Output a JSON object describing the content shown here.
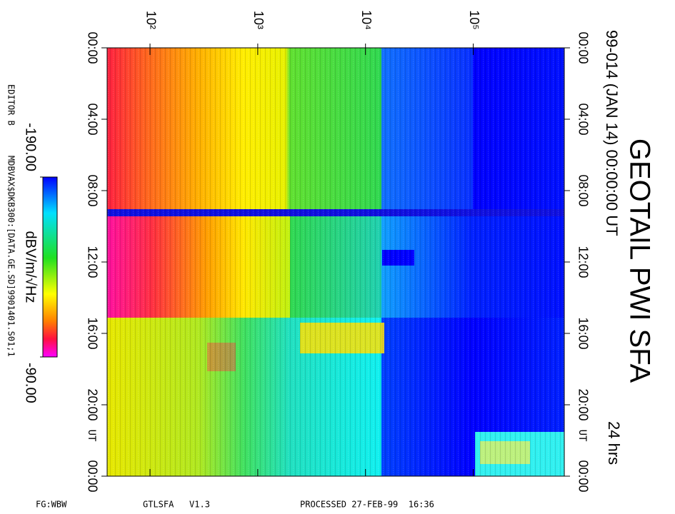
{
  "chart_data": {
    "type": "spectrogram",
    "title": "GEOTAIL PWI SFA",
    "subtitle": "99-014 (JAN 14) 00:00:00 UT",
    "duration_label": "24 hrs",
    "time_unit_label": "UT",
    "x_scale": "log",
    "xlim": [
      40,
      700000
    ],
    "xticks": [
      {
        "value": 100,
        "label": "10²"
      },
      {
        "value": 1000,
        "label": "10³"
      },
      {
        "value": 10000,
        "label": "10⁴"
      },
      {
        "value": 100000,
        "label": "10⁵"
      }
    ],
    "ylim": [
      0,
      24
    ],
    "yticks": [
      {
        "value": 0,
        "label": "00:00"
      },
      {
        "value": 4,
        "label": "04:00"
      },
      {
        "value": 8,
        "label": "08:00"
      },
      {
        "value": 12,
        "label": "12:00"
      },
      {
        "value": 16,
        "label": "16:00"
      },
      {
        "value": 20,
        "label": "20:00"
      },
      {
        "value": 24,
        "label": "00:00"
      }
    ],
    "colorbar": {
      "label": "dBV/m/√Hz",
      "lim": [
        -190,
        -90
      ],
      "ticks": [
        {
          "value": -190,
          "label": "-190.00"
        },
        {
          "value": -90,
          "label": "-90.00"
        }
      ]
    },
    "editor": "EDITOR B",
    "file": "MDBVAX$DKB300:[DATA.GE.SD]9901401.S01;1",
    "footer": [
      "FG:WBW",
      "GTLSFA   V1.3",
      "PROCESSED 27-FEB-99  16:36"
    ]
  }
}
